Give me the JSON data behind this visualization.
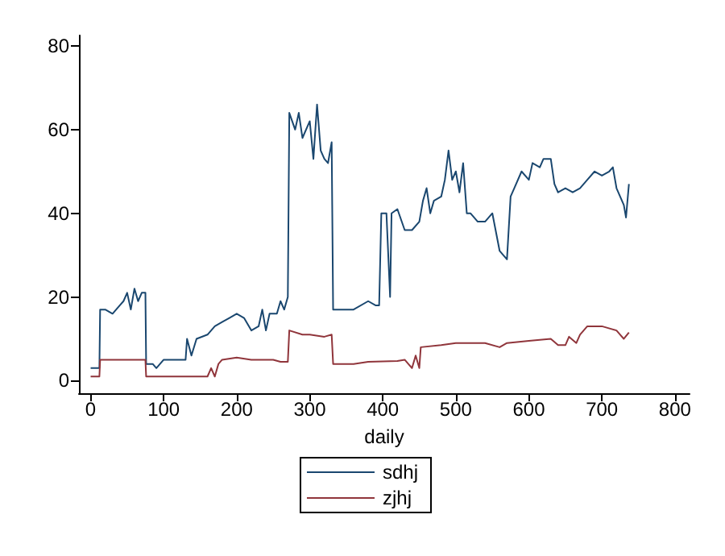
{
  "chart_data": {
    "type": "line",
    "xlabel": "daily",
    "xlim": [
      -16,
      820
    ],
    "xticks": [
      0,
      100,
      200,
      300,
      400,
      500,
      600,
      700,
      800
    ],
    "ylim": [
      -3,
      82.5
    ],
    "yticks": [
      0,
      20,
      40,
      60,
      80
    ],
    "grid": false,
    "legend": "bottom",
    "marker": "none",
    "line_style": "solid",
    "series": [
      {
        "name": "sdhj",
        "color": "#1a476f",
        "x": [
          0,
          12,
          13,
          20,
          30,
          40,
          45,
          50,
          55,
          60,
          65,
          70,
          75,
          76,
          85,
          90,
          100,
          120,
          130,
          132,
          138,
          145,
          160,
          170,
          180,
          190,
          200,
          210,
          220,
          230,
          235,
          240,
          245,
          255,
          260,
          265,
          270,
          272,
          280,
          285,
          290,
          300,
          305,
          310,
          315,
          320,
          325,
          330,
          332,
          340,
          360,
          380,
          390,
          395,
          398,
          405,
          410,
          412,
          420,
          430,
          440,
          450,
          455,
          460,
          465,
          470,
          480,
          485,
          490,
          495,
          500,
          505,
          510,
          515,
          520,
          530,
          540,
          550,
          560,
          565,
          570,
          575,
          580,
          590,
          600,
          605,
          615,
          620,
          630,
          635,
          640,
          650,
          660,
          670,
          680,
          690,
          700,
          710,
          715,
          720,
          730,
          733,
          737
        ],
        "values": [
          3,
          3,
          17,
          17,
          16,
          18,
          19,
          21,
          17,
          22,
          19,
          21,
          21,
          4,
          4,
          3,
          5,
          5,
          5,
          10,
          6,
          10,
          11,
          13,
          14,
          15,
          16,
          15,
          12,
          13,
          17,
          12,
          16,
          16,
          19,
          17,
          20,
          64,
          60,
          64,
          58,
          62,
          53,
          66,
          55,
          53,
          52,
          57,
          17,
          17,
          17,
          19,
          18,
          18,
          40,
          40,
          20,
          40,
          41,
          36,
          36,
          38,
          43,
          46,
          40,
          43,
          44,
          48,
          55,
          48,
          50,
          45,
          52,
          40,
          40,
          38,
          38,
          40,
          31,
          30,
          29,
          44,
          46,
          50,
          48,
          52,
          51,
          53,
          53,
          47,
          45,
          46,
          45,
          46,
          48,
          50,
          49,
          50,
          51,
          46,
          42,
          39,
          47
        ]
      },
      {
        "name": "zjhj",
        "color": "#90353b",
        "x": [
          0,
          12,
          13,
          75,
          76,
          160,
          165,
          170,
          175,
          180,
          200,
          220,
          250,
          260,
          270,
          272,
          290,
          300,
          320,
          330,
          332,
          360,
          380,
          420,
          430,
          440,
          445,
          450,
          452,
          480,
          500,
          520,
          540,
          560,
          570,
          600,
          630,
          640,
          650,
          655,
          665,
          670,
          680,
          700,
          720,
          725,
          730,
          737
        ],
        "values": [
          1,
          1,
          5,
          5,
          1,
          1,
          3,
          1,
          4,
          5,
          5.5,
          5,
          5,
          4.5,
          4.5,
          12,
          11,
          11,
          10.5,
          11,
          4,
          4,
          4.5,
          4.7,
          5,
          3,
          6,
          3,
          8,
          8.5,
          9,
          9,
          9,
          8,
          9,
          9.5,
          10,
          8.5,
          8.5,
          10.5,
          9,
          11,
          13,
          13,
          12,
          11,
          10,
          11.5
        ]
      }
    ]
  }
}
